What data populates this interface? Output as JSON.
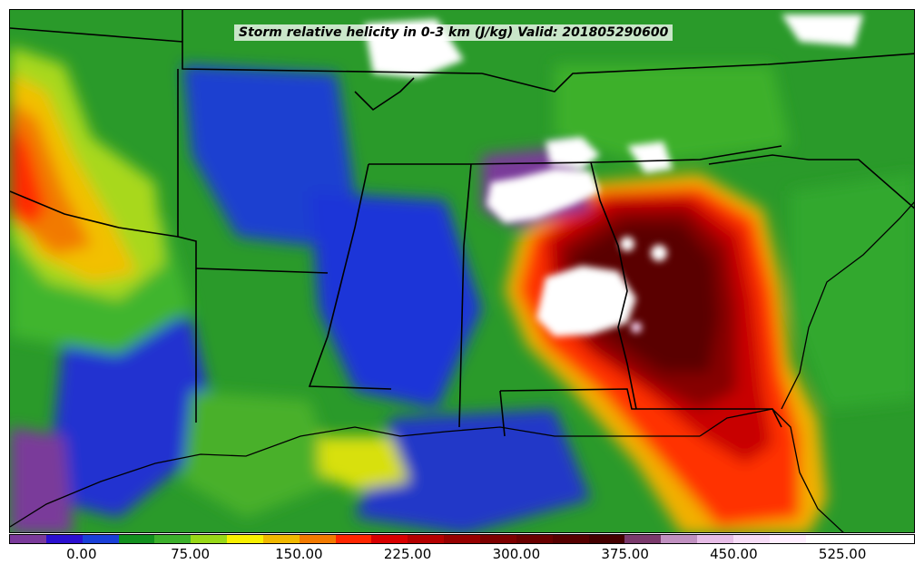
{
  "title": "Storm relative helicity in 0-3 km (J/kg) Valid: 201805290600",
  "colorbar": {
    "min": -50,
    "max": 575,
    "step": 25,
    "tick_values": [
      0,
      75,
      150,
      225,
      300,
      375,
      450,
      525
    ],
    "tick_labels": [
      "0.00",
      "75.00",
      "150.00",
      "225.00",
      "300.00",
      "375.00",
      "450.00",
      "525.00"
    ],
    "colors": [
      "#7a3a9a",
      "#2b0fd0",
      "#1a3fd8",
      "#12901f",
      "#3cb02c",
      "#98d818",
      "#f8f000",
      "#f0b800",
      "#f27a00",
      "#ff2600",
      "#d80000",
      "#b40000",
      "#960000",
      "#7d0000",
      "#690000",
      "#560000",
      "#440000",
      "#7a3a6c",
      "#c090c0",
      "#e6bce6",
      "#f6dcf6",
      "#ffeeff",
      "#ffffff",
      "#ffffff",
      "#ffffff"
    ]
  }
}
